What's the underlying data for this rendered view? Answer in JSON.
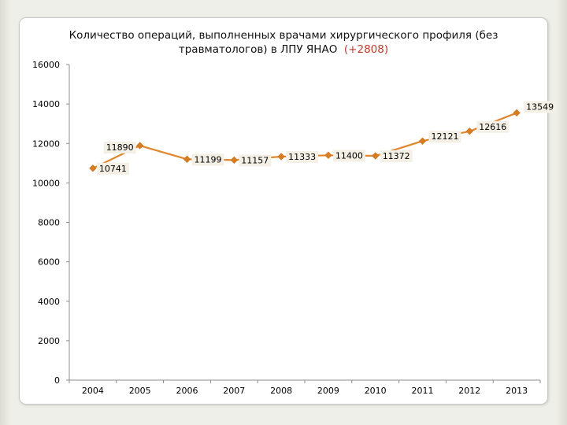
{
  "chart_data": {
    "type": "line",
    "title": "Количество операций, выполненных врачами хирургического профиля (без травматологов) в ЛПУ ЯНАО",
    "title_highlight": "(+2808)",
    "categories": [
      "2004",
      "2005",
      "2006",
      "2007",
      "2008",
      "2009",
      "2010",
      "2011",
      "2012",
      "2013"
    ],
    "series": [
      {
        "values": [
          10741,
          11890,
          11199,
          11157,
          11333,
          11400,
          11372,
          12121,
          12616,
          13549
        ]
      }
    ],
    "xlabel": "",
    "ylabel": "",
    "ylim": [
      0,
      16000
    ],
    "yticks": [
      0,
      2000,
      4000,
      6000,
      8000,
      10000,
      12000,
      14000,
      16000
    ],
    "grid": false,
    "legend": "none",
    "colors": {
      "line": "#e0862b",
      "marker": "#d97d20",
      "accent": "#c0392b"
    }
  }
}
